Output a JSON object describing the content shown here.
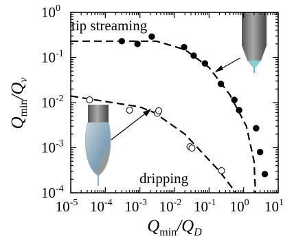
{
  "chart_data": {
    "type": "scatter",
    "xscale": "log",
    "yscale": "log",
    "xlim": [
      1e-05,
      10
    ],
    "ylim": [
      0.0001,
      1
    ],
    "xticks": [
      {
        "value": 1e-05,
        "label": "10",
        "exponent": "-5"
      },
      {
        "value": 0.0001,
        "label": "10",
        "exponent": "-4"
      },
      {
        "value": 0.001,
        "label": "10",
        "exponent": "-3"
      },
      {
        "value": 0.01,
        "label": "10",
        "exponent": "-2"
      },
      {
        "value": 0.1,
        "label": "10",
        "exponent": "-1"
      },
      {
        "value": 1,
        "label": "10",
        "exponent": "0"
      },
      {
        "value": 10,
        "label": "10",
        "exponent": "1"
      }
    ],
    "yticks": [
      {
        "value": 0.0001,
        "label": "10",
        "exponent": "-4"
      },
      {
        "value": 0.001,
        "label": "10",
        "exponent": "-3"
      },
      {
        "value": 0.01,
        "label": "10",
        "exponent": "-2"
      },
      {
        "value": 0.1,
        "label": "10",
        "exponent": "-1"
      },
      {
        "value": 1,
        "label": "10",
        "exponent": "0"
      }
    ],
    "minor_ticks": true,
    "x_label": [
      {
        "text": "Q"
      },
      {
        "text": "min",
        "sub": true
      },
      {
        "text": "/Q"
      },
      {
        "text": "D",
        "sub": true
      }
    ],
    "y_label": [
      {
        "text": "Q"
      },
      {
        "text": "min",
        "sub": true
      },
      {
        "text": "/Q"
      },
      {
        "text": "v",
        "sub": true
      }
    ],
    "annotations": [
      "tip streaming",
      "dripping"
    ],
    "series": [
      {
        "mode": "markers",
        "marker": "filled",
        "color": "#000000",
        "x": [
          0.0003,
          0.00085,
          0.0022,
          0.019,
          0.036,
          0.076,
          0.22,
          0.54,
          0.74,
          2.3,
          3.0,
          4.1
        ],
        "values": [
          0.23,
          0.2,
          0.29,
          0.17,
          0.11,
          0.074,
          0.026,
          0.0115,
          0.0068,
          0.0027,
          0.0008,
          0.00026
        ]
      },
      {
        "mode": "markers",
        "marker": "open",
        "color": "#000000",
        "x": [
          3.5e-05,
          0.0005,
          0.0032,
          0.0035,
          0.028,
          0.032,
          0.23
        ],
        "values": [
          0.0115,
          0.0068,
          0.0058,
          0.0066,
          0.00105,
          0.00098,
          0.00031
        ]
      },
      {
        "mode": "line",
        "style": "dashed",
        "color": "#000000",
        "x": [
          1e-05,
          0.003,
          0.02,
          0.1,
          0.4,
          1.2,
          2.0,
          2.2
        ],
        "values": [
          0.23,
          0.23,
          0.15,
          0.06,
          0.015,
          0.003,
          0.0005,
          0.0001
        ]
      },
      {
        "mode": "line",
        "style": "dashed",
        "color": "#000000",
        "x": [
          1e-05,
          0.001,
          0.0026,
          0.02,
          0.2,
          0.6
        ],
        "values": [
          0.014,
          0.008,
          0.006,
          0.002,
          0.0003,
          0.0001
        ]
      }
    ]
  }
}
